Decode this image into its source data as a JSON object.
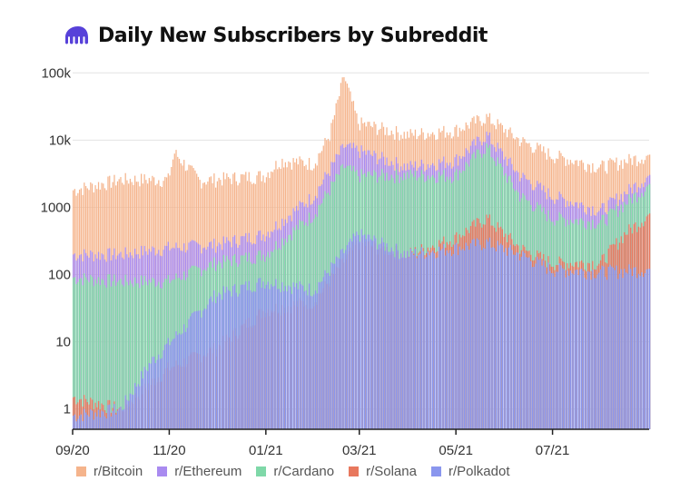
{
  "header": {
    "title": "Daily New Subscribers by Subreddit",
    "logo": "kraken-logo-icon"
  },
  "colors": {
    "bitcoin": "#f5b48c",
    "ethereum": "#a98bf0",
    "cardano": "#7fd8a8",
    "solana": "#e8785e",
    "polkadot": "#8a96ee",
    "logo": "#5741d9"
  },
  "chart_data": {
    "type": "bar",
    "stacked": true,
    "yscale": "log",
    "ylim": [
      0.5,
      200000
    ],
    "title": "Daily New Subscribers by Subreddit",
    "y_ticks": [
      {
        "value": 1,
        "label": "1"
      },
      {
        "value": 10,
        "label": "10"
      },
      {
        "value": 100,
        "label": "100"
      },
      {
        "value": 1000,
        "label": "1000"
      },
      {
        "value": 10000,
        "label": "10k"
      },
      {
        "value": 100000,
        "label": "100k"
      }
    ],
    "x_ticks": [
      "09/20",
      "11/20",
      "01/21",
      "03/21",
      "05/21",
      "07/21"
    ],
    "x_range": [
      "2020-09-01",
      "2021-08-31"
    ],
    "legend_position": "bottom",
    "series_order": [
      "r/Bitcoin",
      "r/Ethereum",
      "r/Cardano",
      "r/Solana",
      "r/Polkadot"
    ],
    "series": [
      {
        "name": "r/Bitcoin",
        "color": "#f5b48c",
        "points": [
          [
            "2020-09-01",
            1800
          ],
          [
            "2020-10-01",
            2600
          ],
          [
            "2020-10-31",
            2600
          ],
          [
            "2020-11-04",
            6500
          ],
          [
            "2020-11-20",
            2500
          ],
          [
            "2020-12-31",
            3000
          ],
          [
            "2021-01-10",
            5000
          ],
          [
            "2021-01-31",
            4500
          ],
          [
            "2021-02-10",
            12000
          ],
          [
            "2021-02-19",
            90000
          ],
          [
            "2021-02-28",
            18000
          ],
          [
            "2021-03-31",
            12000
          ],
          [
            "2021-04-30",
            14000
          ],
          [
            "2021-05-20",
            22000
          ],
          [
            "2021-06-10",
            10000
          ],
          [
            "2021-06-30",
            6000
          ],
          [
            "2021-07-31",
            4000
          ],
          [
            "2021-08-31",
            6000
          ]
        ]
      },
      {
        "name": "r/Ethereum",
        "color": "#a98bf0",
        "points": [
          [
            "2020-09-01",
            200
          ],
          [
            "2020-10-01",
            200
          ],
          [
            "2020-10-31",
            250
          ],
          [
            "2020-11-30",
            280
          ],
          [
            "2020-12-31",
            400
          ],
          [
            "2021-01-31",
            1500
          ],
          [
            "2021-02-19",
            8000
          ],
          [
            "2021-02-28",
            7000
          ],
          [
            "2021-03-31",
            4000
          ],
          [
            "2021-04-30",
            5000
          ],
          [
            "2021-05-20",
            12000
          ],
          [
            "2021-06-10",
            3000
          ],
          [
            "2021-06-30",
            1500
          ],
          [
            "2021-07-31",
            900
          ],
          [
            "2021-08-31",
            3000
          ]
        ]
      },
      {
        "name": "r/Cardano",
        "color": "#7fd8a8",
        "points": [
          [
            "2020-09-01",
            90
          ],
          [
            "2020-10-01",
            80
          ],
          [
            "2020-10-31",
            80
          ],
          [
            "2020-11-30",
            150
          ],
          [
            "2020-12-31",
            200
          ],
          [
            "2021-01-31",
            800
          ],
          [
            "2021-02-19",
            4000
          ],
          [
            "2021-02-28",
            3000
          ],
          [
            "2021-03-31",
            3000
          ],
          [
            "2021-04-30",
            3000
          ],
          [
            "2021-05-20",
            8000
          ],
          [
            "2021-06-10",
            1500
          ],
          [
            "2021-06-30",
            700
          ],
          [
            "2021-07-31",
            600
          ],
          [
            "2021-08-31",
            2200
          ]
        ]
      },
      {
        "name": "r/Solana",
        "color": "#e8785e",
        "points": [
          [
            "2020-09-01",
            1.5
          ],
          [
            "2020-10-01",
            1
          ],
          [
            "2020-10-31",
            4
          ],
          [
            "2020-11-30",
            8
          ],
          [
            "2020-12-31",
            30
          ],
          [
            "2021-01-31",
            40
          ],
          [
            "2021-02-28",
            300
          ],
          [
            "2021-03-31",
            200
          ],
          [
            "2021-04-30",
            350
          ],
          [
            "2021-05-20",
            700
          ],
          [
            "2021-06-10",
            250
          ],
          [
            "2021-06-30",
            150
          ],
          [
            "2021-07-31",
            150
          ],
          [
            "2021-08-15",
            400
          ],
          [
            "2021-08-31",
            800
          ]
        ]
      },
      {
        "name": "r/Polkadot",
        "color": "#8a96ee",
        "points": [
          [
            "2020-09-01",
            0.8
          ],
          [
            "2020-10-01",
            1
          ],
          [
            "2020-10-20",
            5
          ],
          [
            "2020-11-30",
            50
          ],
          [
            "2020-12-31",
            80
          ],
          [
            "2021-01-31",
            60
          ],
          [
            "2021-02-28",
            400
          ],
          [
            "2021-03-31",
            200
          ],
          [
            "2021-04-30",
            250
          ],
          [
            "2021-05-20",
            300
          ],
          [
            "2021-06-10",
            200
          ],
          [
            "2021-06-30",
            120
          ],
          [
            "2021-07-31",
            110
          ],
          [
            "2021-08-31",
            120
          ]
        ]
      }
    ]
  },
  "legend": [
    {
      "label": "r/Bitcoin",
      "color": "#f5b48c"
    },
    {
      "label": "r/Ethereum",
      "color": "#a98bf0"
    },
    {
      "label": "r/Cardano",
      "color": "#7fd8a8"
    },
    {
      "label": "r/Solana",
      "color": "#e8785e"
    },
    {
      "label": "r/Polkadot",
      "color": "#8a96ee"
    }
  ]
}
